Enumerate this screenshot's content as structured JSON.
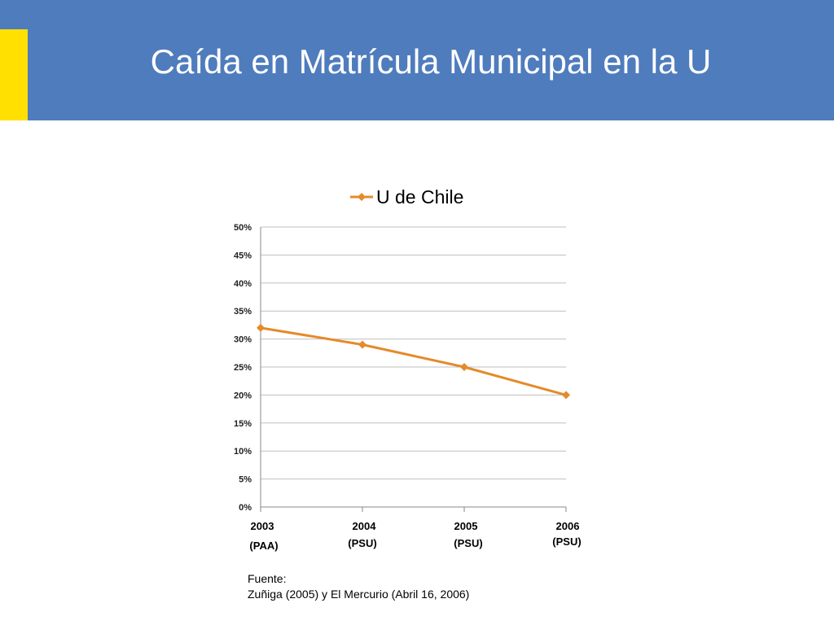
{
  "slide": {
    "title": "Caída en Matrícula Municipal en la U",
    "source_label": "Fuente:",
    "source_text": "Zuñiga (2005) y  El Mercurio (Abril 16, 2006)"
  },
  "colors": {
    "header": "#4f7cbd",
    "accent": "#ffe000",
    "series": "#e58a2a",
    "grid": "#bfbfbf",
    "axis": "#888888"
  },
  "chart_data": {
    "type": "line",
    "title": "",
    "categories": [
      {
        "year": "2003",
        "exam": "(PAA)"
      },
      {
        "year": "2004",
        "exam": "(PSU)"
      },
      {
        "year": "2005",
        "exam": "(PSU)"
      },
      {
        "year": "2006",
        "exam": "(PSU)"
      }
    ],
    "series": [
      {
        "name": "U de Chile",
        "values": [
          32,
          29,
          25,
          20
        ],
        "marker": "diamond"
      }
    ],
    "ylim": [
      0,
      50
    ],
    "yticks": [
      0,
      5,
      10,
      15,
      20,
      25,
      30,
      35,
      40,
      45,
      50
    ],
    "ytick_labels": [
      "0%",
      "5%",
      "10%",
      "15%",
      "20%",
      "25%",
      "30%",
      "35%",
      "40%",
      "45%",
      "50%"
    ],
    "grid": true,
    "legend": "top"
  }
}
